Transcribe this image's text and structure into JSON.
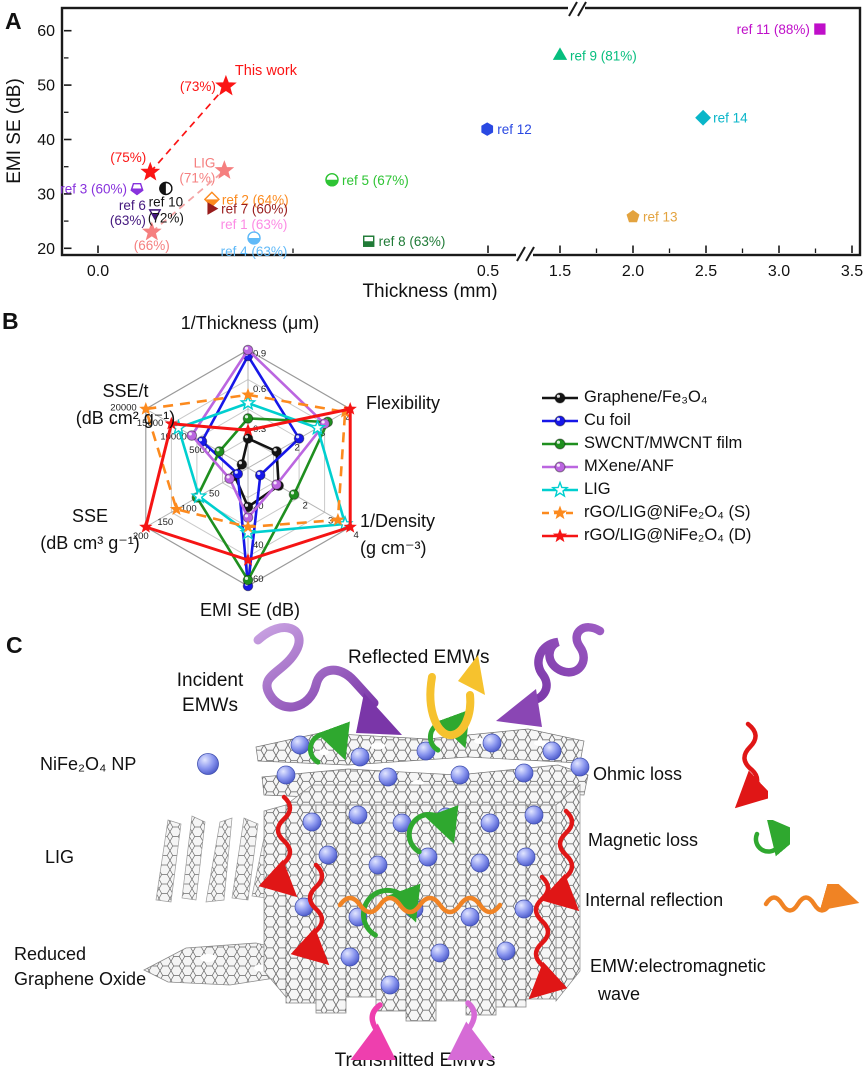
{
  "panels": {
    "a": "A",
    "b": "B",
    "c": "C"
  },
  "chart_data": [
    {
      "id": "emi_vs_thickness",
      "type": "scatter",
      "xlabel": "Thickness (mm)",
      "ylabel": "EMI SE (dB)",
      "ylim": [
        20,
        62
      ],
      "x_ticks_left": [
        "0.0",
        "0.5"
      ],
      "x_ticks_right": [
        "1.5",
        "2.0",
        "2.5",
        "3.0",
        "3.5"
      ],
      "y_ticks": [
        "20",
        "30",
        "40",
        "50",
        "60"
      ],
      "axis_break_between": [
        0.6,
        1.4
      ],
      "points": [
        {
          "name": "ref 3",
          "label": "ref 3 (60%)",
          "x": 0.05,
          "y": 31,
          "color": "#8833DD",
          "marker": "pent-half",
          "pos": "left"
        },
        {
          "name": "ref 6",
          "label": "ref 6",
          "label2": "(63%)",
          "x": 0.073,
          "y": 26.5,
          "color": "#44187E",
          "marker": "tri-down-half",
          "pos": "left2"
        },
        {
          "name": "66pct",
          "label": "(66%)",
          "x": 0.069,
          "y": 23,
          "color": "#F57F7F",
          "marker": "star",
          "pos": "below"
        },
        {
          "name": "75pct",
          "label": "(75%)",
          "x": 0.067,
          "y": 34,
          "color": "#FB1414",
          "marker": "star",
          "pos": "above-left"
        },
        {
          "name": "ref 10",
          "label": "ref 10",
          "label2": "(72%)",
          "x": 0.087,
          "y": 31,
          "color": "#131313",
          "marker": "circle-half-left",
          "pos": "below2"
        },
        {
          "name": "this work",
          "label": "This work",
          "label2": "(73%)",
          "x": 0.164,
          "y": 49.8,
          "color": "#FB1414",
          "marker": "star",
          "pos": "thiswork"
        },
        {
          "name": "LIG",
          "label": "LIG",
          "label2": "(71%)",
          "x": 0.162,
          "y": 34.3,
          "color": "#F57F7F",
          "marker": "star",
          "pos": "left2"
        },
        {
          "name": "ref 2",
          "label": "ref 2 (64%)",
          "x": 0.146,
          "y": 29,
          "color": "#FC8A1E",
          "marker": "diamond-half",
          "pos": "right"
        },
        {
          "name": "ref 7",
          "label": "ref 7 (60%)",
          "x": 0.145,
          "y": 27.3,
          "color": "#981D1D",
          "marker": "tri-right",
          "pos": "right"
        },
        {
          "name": "ref 1",
          "label": "ref 1 (63%)",
          "x": 0.2,
          "y": 24.3,
          "color": "#FC8BE4",
          "marker": "none",
          "pos": "center"
        },
        {
          "name": "ref 4",
          "label": "ref 4 (63%)",
          "x": 0.2,
          "y": 21.9,
          "color": "#5FB9F8",
          "marker": "circle-bottom",
          "pos": "below"
        },
        {
          "name": "ref 5",
          "label": "ref 5 (67%)",
          "x": 0.3,
          "y": 32.6,
          "color": "#2EC434",
          "marker": "circle-bottom",
          "pos": "right"
        },
        {
          "name": "ref 8",
          "label": "ref 8 (63%)",
          "x": 0.347,
          "y": 21.3,
          "color": "#207B37",
          "marker": "square-half",
          "pos": "right"
        },
        {
          "name": "ref 12",
          "label": "ref 12",
          "x": 0.499,
          "y": 41.9,
          "color": "#2A49E2",
          "marker": "hexagon",
          "pos": "right"
        },
        {
          "name": "ref 9",
          "label": "ref 9 (81%)",
          "x": 1.5,
          "y": 55.4,
          "color": "#06BE7E",
          "marker": "tri-up",
          "pos": "right"
        },
        {
          "name": "ref 13",
          "label": "ref 13",
          "x": 2.0,
          "y": 25.8,
          "color": "#E3A33F",
          "marker": "pentagon",
          "pos": "right"
        },
        {
          "name": "ref 14",
          "label": "ref 14",
          "x": 2.48,
          "y": 44,
          "color": "#09B6C9",
          "marker": "diamond",
          "pos": "right"
        },
        {
          "name": "ref 11",
          "label": "ref 11 (88%)",
          "x": 3.28,
          "y": 60.3,
          "color": "#BF0FC9",
          "marker": "square",
          "pos": "left"
        }
      ],
      "connector_lines": [
        {
          "x1": 0.067,
          "y1": 34,
          "x2": 0.164,
          "y2": 49.8,
          "color": "#FB1414"
        },
        {
          "x1": 0.069,
          "y1": 23,
          "x2": 0.162,
          "y2": 34.3,
          "color": "#F5A3A3"
        }
      ]
    },
    {
      "id": "materials_radar",
      "type": "radar",
      "note": "series values are fractions of each axis maximum",
      "axes": [
        {
          "title": "1/Thickness (μm)",
          "unit": "",
          "ticks": [
            {
              "t": "0.3",
              "f": 0.33
            },
            {
              "t": "0.6",
              "f": 0.67
            },
            {
              "t": "0.9",
              "f": 0.97
            }
          ]
        },
        {
          "title": "Flexibility",
          "unit": "",
          "ticks": [
            {
              "t": "2",
              "f": 0.5
            },
            {
              "t": "3",
              "f": 0.75
            },
            {
              "t": "4",
              "f": 1.0
            }
          ]
        },
        {
          "title": "1/Density",
          "unit": "(g cm⁻³)",
          "ticks": [
            {
              "t": "2",
              "f": 0.5
            },
            {
              "t": "3",
              "f": 0.75
            },
            {
              "t": "4",
              "f": 1.0
            }
          ]
        },
        {
          "title": "EMI SE (dB)",
          "unit": "",
          "ticks": [
            {
              "t": "20",
              "f": 0.33
            },
            {
              "t": "40",
              "f": 0.66
            },
            {
              "t": "60",
              "f": 0.95
            }
          ]
        },
        {
          "title": "SSE",
          "unit": "(dB cm³ g⁻¹)",
          "ticks": [
            {
              "t": "50",
              "f": 0.3
            },
            {
              "t": "100",
              "f": 0.55
            },
            {
              "t": "150",
              "f": 0.78
            },
            {
              "t": "200",
              "f": 1.02
            }
          ]
        },
        {
          "title": "SSE/t",
          "unit": "(dB cm² g⁻¹)",
          "ticks": [
            {
              "t": "5000",
              "f": 0.32
            },
            {
              "t": "10000",
              "f": 0.55
            },
            {
              "t": "15000",
              "f": 0.78
            },
            {
              "t": "20000",
              "f": 1.04
            }
          ]
        }
      ],
      "series": [
        {
          "name": "Graphene/Fe₃O₄",
          "color": "#141414",
          "marker": "ball",
          "dash": false,
          "values": [
            0.25,
            0.28,
            0.3,
            0.33,
            0.13,
            0.06
          ]
        },
        {
          "name": "Cu foil",
          "color": "#1717E8",
          "marker": "ball",
          "dash": false,
          "values": [
            0.95,
            0.5,
            0.12,
            1.0,
            0.1,
            0.45
          ]
        },
        {
          "name": "SWCNT/MWCNT film",
          "color": "#1F8F1F",
          "marker": "ball",
          "dash": false,
          "values": [
            0.42,
            0.78,
            0.45,
            0.95,
            0.5,
            0.28
          ]
        },
        {
          "name": "MXene/ANF",
          "color": "#BB66E0",
          "marker": "ball",
          "dash": false,
          "values": [
            1.0,
            0.75,
            0.28,
            0.42,
            0.18,
            0.55
          ]
        },
        {
          "name": "LIG",
          "color": "#00CFCF",
          "marker": "star-open",
          "dash": false,
          "values": [
            0.55,
            0.68,
            0.95,
            0.55,
            0.48,
            0.68
          ]
        },
        {
          "name": "rGO/LIG@NiFe₂O₄ (S)",
          "color": "#FC8A1E",
          "marker": "star",
          "dash": true,
          "values": [
            0.62,
            0.95,
            0.88,
            0.5,
            0.7,
            1.0
          ]
        },
        {
          "name": "rGO/LIG@NiFe₂O₄ (D)",
          "color": "#F51414",
          "marker": "star",
          "dash": false,
          "values": [
            0.32,
            1.0,
            1.0,
            0.78,
            1.0,
            0.75
          ]
        }
      ]
    }
  ],
  "panel_c": {
    "incident_line1": "Incident",
    "incident_line2": "EMWs",
    "reflected": "Reflected EMWs",
    "np_label": "NiFe₂O₄ NP",
    "lig_label": "LIG",
    "rgo_line1": "Reduced",
    "rgo_line2": "Graphene Oxide",
    "ohmic": "Ohmic loss",
    "magnetic": "Magnetic loss",
    "internal": "Internal reflection",
    "emw_line1": "EMW:electromagnetic",
    "emw_line2": "wave",
    "transmitted": "Transmitted EMWs"
  }
}
